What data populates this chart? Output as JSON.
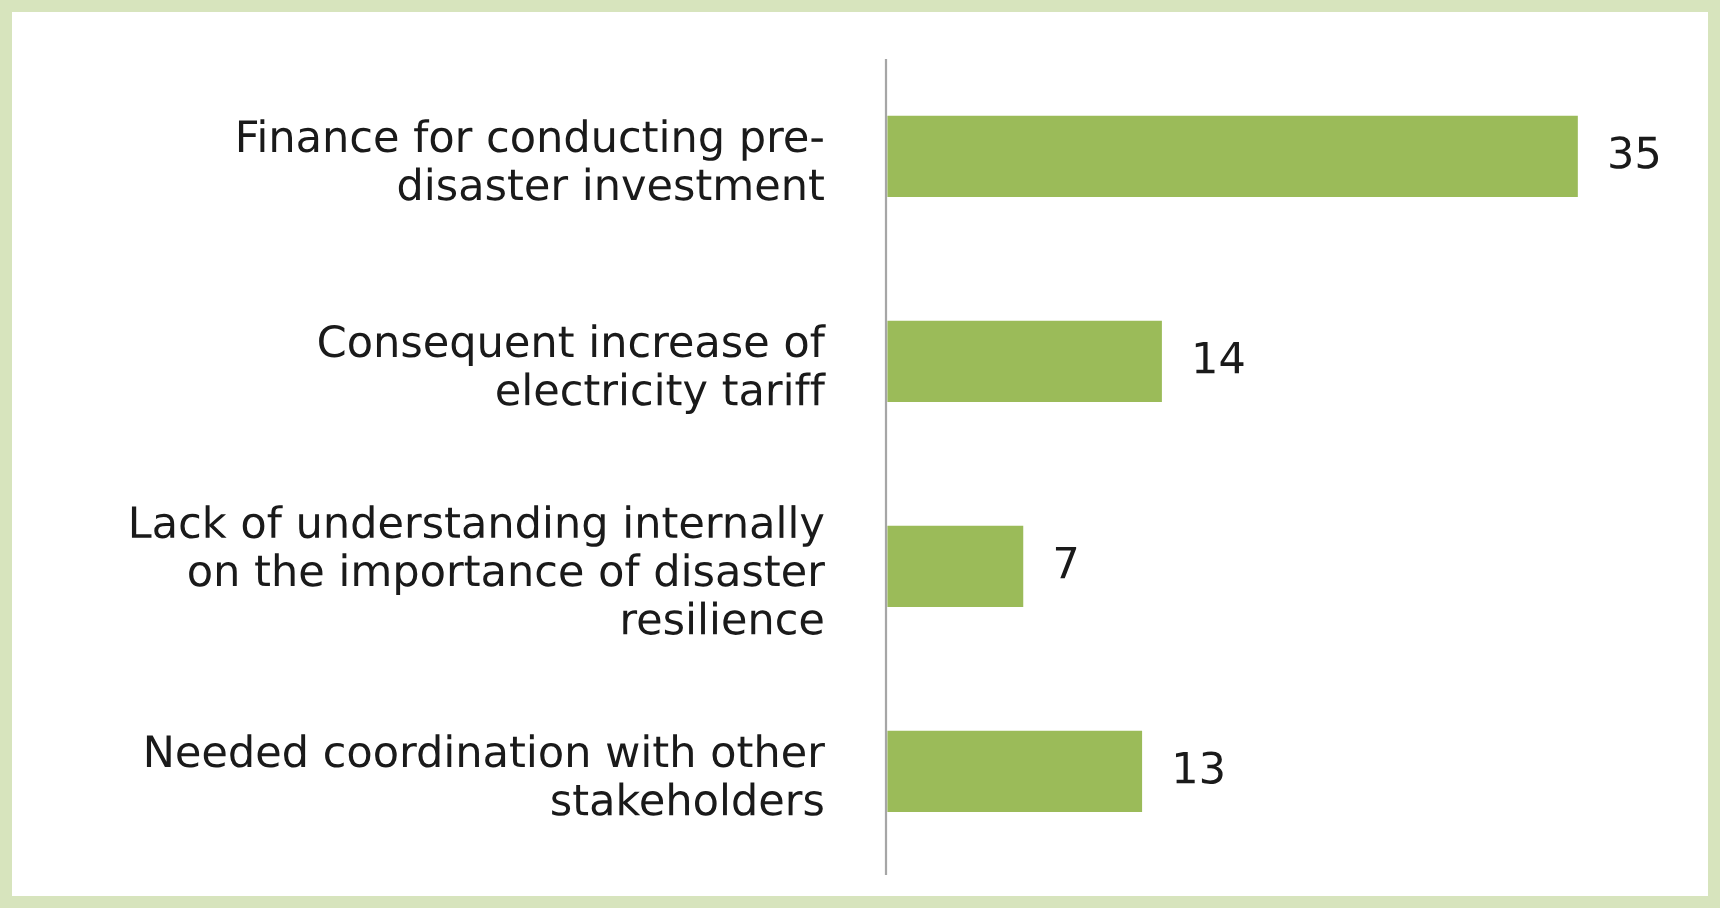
{
  "chart_data": {
    "type": "bar",
    "orientation": "horizontal",
    "categories": [
      "Finance for conducting pre-\ndisaster investment",
      "Consequent increase of\nelectricity tariff",
      "Lack of understanding internally\non the importance of disaster\nresilience",
      "Needed coordination with other\nstakeholders"
    ],
    "values": [
      35,
      14,
      7,
      13
    ],
    "color": "#9bbb59",
    "data_labels": true,
    "grid": false,
    "legend": false
  }
}
